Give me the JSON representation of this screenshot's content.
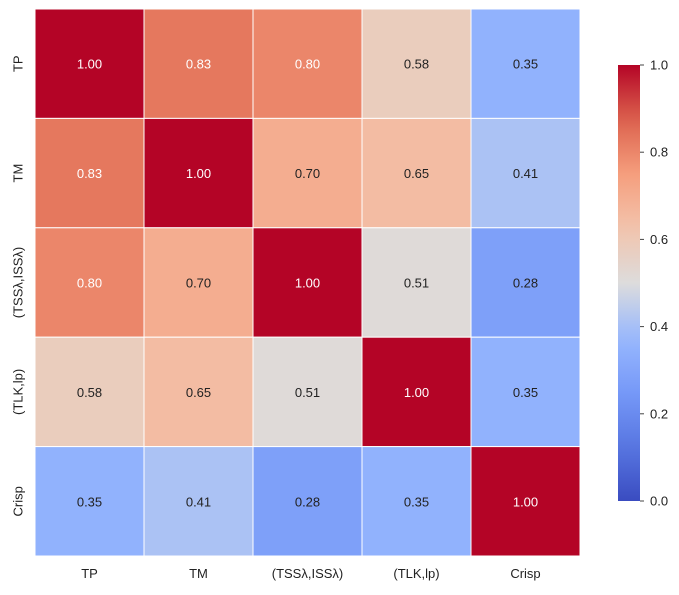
{
  "chart_data": {
    "type": "heatmap",
    "title": "",
    "xlabel": "",
    "ylabel": "",
    "row_labels": [
      "TP",
      "TM",
      "(TSSλ,ISSλ)",
      "(TLK,lp)",
      "Crisp"
    ],
    "col_labels": [
      "TP",
      "TM",
      "(TSSλ,ISSλ)",
      "(TLK,lp)",
      "Crisp"
    ],
    "values": [
      [
        1.0,
        0.83,
        0.8,
        0.58,
        0.35
      ],
      [
        0.83,
        1.0,
        0.7,
        0.65,
        0.41
      ],
      [
        0.8,
        0.7,
        1.0,
        0.51,
        0.28
      ],
      [
        0.58,
        0.65,
        0.51,
        1.0,
        0.35
      ],
      [
        0.35,
        0.41,
        0.28,
        0.35,
        1.0
      ]
    ],
    "value_labels": [
      [
        "1.00",
        "0.83",
        "0.80",
        "0.58",
        "0.35"
      ],
      [
        "0.83",
        "1.00",
        "0.70",
        "0.65",
        "0.41"
      ],
      [
        "0.80",
        "0.70",
        "1.00",
        "0.51",
        "0.28"
      ],
      [
        "0.58",
        "0.65",
        "0.51",
        "1.00",
        "0.35"
      ],
      [
        "0.35",
        "0.41",
        "0.28",
        "0.35",
        "1.00"
      ]
    ],
    "colormap": "coolwarm",
    "vmin": 0.0,
    "vmax": 1.0,
    "colorbar": {
      "ticks": [
        0.0,
        0.2,
        0.4,
        0.6,
        0.8,
        1.0
      ],
      "tick_labels": [
        "0.0",
        "0.2",
        "0.4",
        "0.6",
        "0.8",
        "1.0"
      ]
    },
    "cell_border_color": "#ffffff",
    "text_color_light": "#ffffff",
    "text_color_dark": "#222222"
  }
}
